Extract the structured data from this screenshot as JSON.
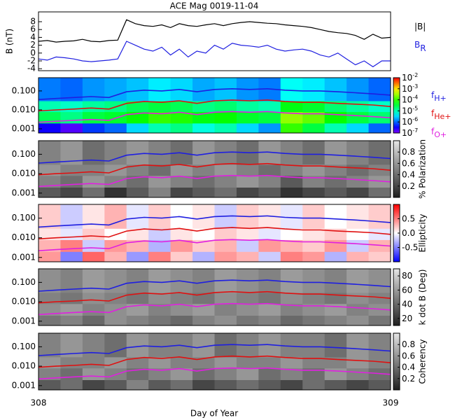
{
  "chart_data": {
    "type": "stacked-spectrogram",
    "title": "ACE Mag 0019-11-04",
    "xlim": [
      308,
      309
    ],
    "xticks": [
      308,
      309
    ],
    "xlabel": "Day of Year",
    "field": {
      "type": "line",
      "ylabel": "B (nT)",
      "ylim": [
        -4.5,
        10.5
      ],
      "yticks": [
        8,
        6,
        4,
        2,
        0,
        -2,
        -4
      ],
      "x": [
        308,
        308.025,
        308.05,
        308.075,
        308.1,
        308.125,
        308.15,
        308.175,
        308.2,
        308.225,
        308.25,
        308.275,
        308.3,
        308.325,
        308.35,
        308.375,
        308.4,
        308.425,
        308.45,
        308.475,
        308.5,
        308.525,
        308.55,
        308.575,
        308.6,
        308.625,
        308.65,
        308.675,
        308.7,
        308.725,
        308.75,
        308.775,
        308.8,
        308.825,
        308.85,
        308.875,
        308.9,
        308.925,
        308.95,
        308.975,
        309
      ],
      "series": [
        {
          "name": "|B|",
          "color": "#000000",
          "values": [
            3,
            3.2,
            2.8,
            3,
            3.1,
            3.5,
            3,
            2.9,
            3.2,
            3.3,
            8.5,
            7.5,
            7,
            6.8,
            7.2,
            6.5,
            7.5,
            7,
            6.8,
            7.2,
            7.5,
            7,
            7.5,
            7.8,
            8,
            7.8,
            7.6,
            7.5,
            7.2,
            7,
            6.8,
            6.5,
            6,
            5.5,
            5.2,
            5,
            4.5,
            3.5,
            4.8,
            3.8,
            4
          ]
        },
        {
          "name": "B",
          "subscript": "R",
          "color": "#1f1fe0",
          "values": [
            -1.5,
            -1.8,
            -1,
            -1.2,
            -1.5,
            -2,
            -2.2,
            -2,
            -1.8,
            -1.5,
            3,
            2,
            1,
            0.5,
            1.5,
            -0.5,
            1,
            -1,
            0.5,
            0,
            2,
            1,
            2.5,
            2,
            1.8,
            1.5,
            2,
            1,
            0.5,
            0.8,
            1,
            0.5,
            -0.5,
            -1,
            0,
            -1.5,
            -3,
            -2,
            -3.5,
            -2,
            -2
          ]
        }
      ]
    },
    "ylim": [
      0.0006,
      0.5
    ],
    "yticks": [
      {
        "value": 0.1,
        "label": "0.100"
      },
      {
        "value": 0.01,
        "label": "0.010"
      },
      {
        "value": 0.001,
        "label": "0.001"
      }
    ],
    "time_bins": [
      308,
      308.0625,
      308.125,
      308.1875,
      308.25,
      308.3125,
      308.375,
      308.4375,
      308.5,
      308.5625,
      308.625,
      308.6875,
      308.75,
      308.8125,
      308.875,
      308.9375,
      309
    ],
    "freq_bins": [
      0.0006,
      0.002,
      0.008,
      0.03,
      0.5
    ],
    "gyro": {
      "x": [
        308,
        308.05,
        308.1,
        308.15,
        308.2,
        308.25,
        308.3,
        308.35,
        308.4,
        308.45,
        308.5,
        308.55,
        308.6,
        308.65,
        308.7,
        308.75,
        308.8,
        308.85,
        308.9,
        308.95,
        309
      ],
      "series": [
        {
          "name": "f",
          "subscript": "H+",
          "color": "#1f1fe0",
          "values": [
            0.035,
            0.04,
            0.045,
            0.05,
            0.045,
            0.09,
            0.11,
            0.1,
            0.12,
            0.09,
            0.12,
            0.13,
            0.12,
            0.13,
            0.11,
            0.1,
            0.1,
            0.09,
            0.08,
            0.07,
            0.06
          ]
        },
        {
          "name": "f",
          "subscript": "He+",
          "color": "#e01010",
          "values": [
            0.0088,
            0.01,
            0.011,
            0.0125,
            0.011,
            0.022,
            0.028,
            0.025,
            0.03,
            0.022,
            0.03,
            0.033,
            0.03,
            0.033,
            0.028,
            0.025,
            0.025,
            0.022,
            0.02,
            0.018,
            0.015
          ]
        },
        {
          "name": "f",
          "subscript": "O+",
          "color": "#e020e0",
          "values": [
            0.0022,
            0.0025,
            0.0028,
            0.0031,
            0.0028,
            0.0056,
            0.0069,
            0.0062,
            0.0075,
            0.0056,
            0.0075,
            0.0081,
            0.0075,
            0.0081,
            0.0069,
            0.0062,
            0.0062,
            0.0056,
            0.005,
            0.0044,
            0.0038
          ]
        }
      ]
    },
    "spectrograms": [
      {
        "colormap": "rainbow",
        "clim": [
          -7,
          -2
        ],
        "cticks": [
          {
            "value": -2,
            "label": "10",
            "sup": "-2"
          },
          {
            "value": -3,
            "label": "10",
            "sup": "-3"
          },
          {
            "value": -4,
            "label": "10",
            "sup": "-4"
          },
          {
            "value": -5,
            "label": "10",
            "sup": "-5"
          },
          {
            "value": -6,
            "label": "10",
            "sup": "-6"
          },
          {
            "value": -7,
            "label": "10",
            "sup": "-7"
          }
        ],
        "values": [
          [
            -6.5,
            -6.8,
            -6.2,
            -6,
            -5.5,
            -5,
            -4.8,
            -5.2,
            -5,
            -5.5,
            -5.8,
            -4,
            -4.5,
            -5,
            -5.5,
            -6
          ],
          [
            -4.6,
            -4.8,
            -4.5,
            -4.4,
            -4.2,
            -4,
            -4.1,
            -4.3,
            -4.2,
            -4.4,
            -4.5,
            -3.6,
            -3.8,
            -4.2,
            -4.5,
            -4.7
          ],
          [
            -5,
            -5.1,
            -4.9,
            -4.8,
            -4.6,
            -4.5,
            -4.6,
            -4.8,
            -4.7,
            -4.9,
            -5,
            -4.3,
            -4.4,
            -4.7,
            -4.9,
            -5.1
          ],
          [
            -5.9,
            -6,
            -5.8,
            -5.7,
            -5.6,
            -5.4,
            -5.5,
            -5.7,
            -5.6,
            -5.8,
            -5.9,
            -5.3,
            -5.4,
            -5.6,
            -5.8,
            -6
          ]
        ]
      },
      {
        "colormap": "gray",
        "clim": [
          0,
          1
        ],
        "clabel": "% Polarization",
        "cticks": [
          0.8,
          0.6,
          0.4,
          0.2
        ],
        "values": [
          [
            0.3,
            0.2,
            0.4,
            0.1,
            0.3,
            0.5,
            0.2,
            0.3,
            0.4,
            0.2,
            0.3,
            0.1,
            0.2,
            0.3,
            0.2,
            0.4
          ],
          [
            0.5,
            0.4,
            0.6,
            0.5,
            0.4,
            0.6,
            0.5,
            0.4,
            0.5,
            0.6,
            0.5,
            0.3,
            0.5,
            0.4,
            0.5,
            0.6
          ],
          [
            0.6,
            0.5,
            0.5,
            0.6,
            0.5,
            0.4,
            0.6,
            0.5,
            0.6,
            0.5,
            0.4,
            0.5,
            0.6,
            0.5,
            0.4,
            0.5
          ],
          [
            0.5,
            0.6,
            0.4,
            0.5,
            0.6,
            0.5,
            0.4,
            0.6,
            0.5,
            0.4,
            0.6,
            0.5,
            0.4,
            0.6,
            0.5,
            0.4
          ]
        ]
      },
      {
        "colormap": "bwr",
        "clim": [
          -1,
          1
        ],
        "clabel": "Ellipticity",
        "cticks": [
          0.5,
          {
            "value": 0,
            "label": "0.0"
          },
          -0.5
        ],
        "values": [
          [
            0.4,
            -0.5,
            0.6,
            0.3,
            -0.4,
            0.5,
            0.2,
            -0.3,
            0.4,
            0.3,
            -0.2,
            0.5,
            0.4,
            -0.3,
            0.3,
            0.2
          ],
          [
            0.3,
            0.5,
            -0.2,
            0.4,
            0.3,
            -0.3,
            0.4,
            0.2,
            0.3,
            -0.2,
            0.4,
            0.3,
            0.2,
            0.4,
            -0.2,
            0.3
          ],
          [
            0.1,
            -0.1,
            0.2,
            0,
            0.1,
            -0.2,
            0.1,
            0,
            0.2,
            0.1,
            -0.1,
            0,
            0.1,
            0.2,
            0,
            -0.1
          ],
          [
            0.2,
            -0.2,
            0.1,
            0.3,
            -0.1,
            0.2,
            0,
            0.1,
            -0.2,
            0.2,
            0.1,
            -0.1,
            0.2,
            0,
            0.1,
            0.2
          ]
        ]
      },
      {
        "colormap": "gray",
        "clim": [
          10,
          90
        ],
        "clabel": "k dot B (Deg)",
        "cticks": [
          80,
          60,
          40,
          20
        ],
        "values": [
          [
            45,
            50,
            40,
            55,
            50,
            45,
            40,
            50,
            55,
            45,
            50,
            40,
            45,
            50,
            55,
            45
          ],
          [
            55,
            60,
            50,
            55,
            60,
            50,
            55,
            60,
            50,
            55,
            60,
            50,
            55,
            60,
            50,
            55
          ],
          [
            50,
            45,
            55,
            50,
            45,
            55,
            50,
            45,
            55,
            50,
            45,
            55,
            50,
            45,
            55,
            50
          ],
          [
            55,
            50,
            60,
            55,
            50,
            60,
            55,
            50,
            60,
            55,
            50,
            60,
            55,
            50,
            60,
            55
          ]
        ]
      },
      {
        "colormap": "gray",
        "clim": [
          0,
          1
        ],
        "clabel": "Coherency",
        "cticks": [
          0.8,
          0.6,
          0.4,
          0.2
        ],
        "values": [
          [
            0.3,
            0.4,
            0.2,
            0.3,
            0.5,
            0.3,
            0.4,
            0.2,
            0.3,
            0.4,
            0.3,
            0.2,
            0.4,
            0.3,
            0.2,
            0.3
          ],
          [
            0.5,
            0.4,
            0.6,
            0.5,
            0.4,
            0.5,
            0.6,
            0.4,
            0.5,
            0.6,
            0.4,
            0.5,
            0.4,
            0.6,
            0.5,
            0.4
          ],
          [
            0.6,
            0.5,
            0.5,
            0.6,
            0.5,
            0.6,
            0.5,
            0.5,
            0.6,
            0.5,
            0.5,
            0.6,
            0.5,
            0.5,
            0.6,
            0.5
          ],
          [
            0.5,
            0.6,
            0.5,
            0.4,
            0.6,
            0.5,
            0.5,
            0.6,
            0.4,
            0.5,
            0.6,
            0.5,
            0.5,
            0.4,
            0.6,
            0.5
          ]
        ]
      }
    ]
  }
}
